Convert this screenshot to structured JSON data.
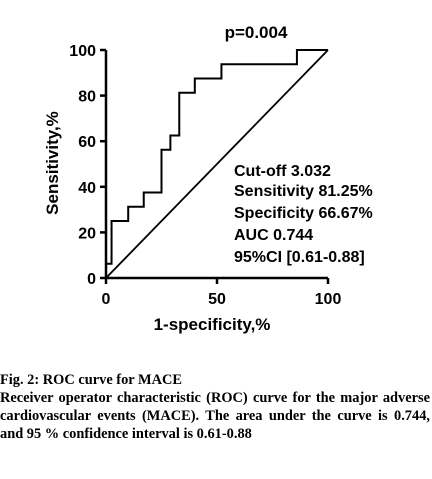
{
  "chart_data": {
    "type": "line",
    "annotation_top": "p=0.004",
    "xlabel": "1-specificity,%",
    "ylabel": "Sensitivity,%",
    "xlim": [
      0,
      100
    ],
    "ylim": [
      0,
      100
    ],
    "x_ticks": [
      "0",
      "50",
      "100"
    ],
    "y_ticks": [
      "0",
      "20",
      "40",
      "60",
      "80",
      "100"
    ],
    "grid": false,
    "series": [
      {
        "style": "step",
        "points": [
          [
            0,
            0
          ],
          [
            0,
            6.25
          ],
          [
            2.5,
            6.25
          ],
          [
            2.5,
            25
          ],
          [
            10,
            25
          ],
          [
            10,
            31.25
          ],
          [
            17,
            31.25
          ],
          [
            17,
            37.5
          ],
          [
            25,
            37.5
          ],
          [
            25,
            56.25
          ],
          [
            29,
            56.25
          ],
          [
            29,
            62.5
          ],
          [
            33,
            62.5
          ],
          [
            33,
            81.25
          ],
          [
            40,
            81.25
          ],
          [
            40,
            87.5
          ],
          [
            52,
            87.5
          ],
          [
            52,
            93.75
          ],
          [
            86,
            93.75
          ],
          [
            86,
            100
          ],
          [
            100,
            100
          ]
        ]
      },
      {
        "style": "diagonal",
        "points": [
          [
            0,
            0
          ],
          [
            100,
            100
          ]
        ]
      }
    ],
    "stats_lines": [
      "Cut-off 3.032",
      "Sensitivity 81.25%",
      "Specificity 66.67%",
      "AUC 0.744",
      "95%CI [0.61-0.88]"
    ]
  },
  "caption": {
    "fig_title": "Fig. 2: ROC curve for MACE",
    "body": "Receiver operator characteristic (ROC) curve for the major adverse cardiovascular events (MACE). The area under the curve is 0.744, and 95 % confidence interval is 0.61-0.88"
  }
}
